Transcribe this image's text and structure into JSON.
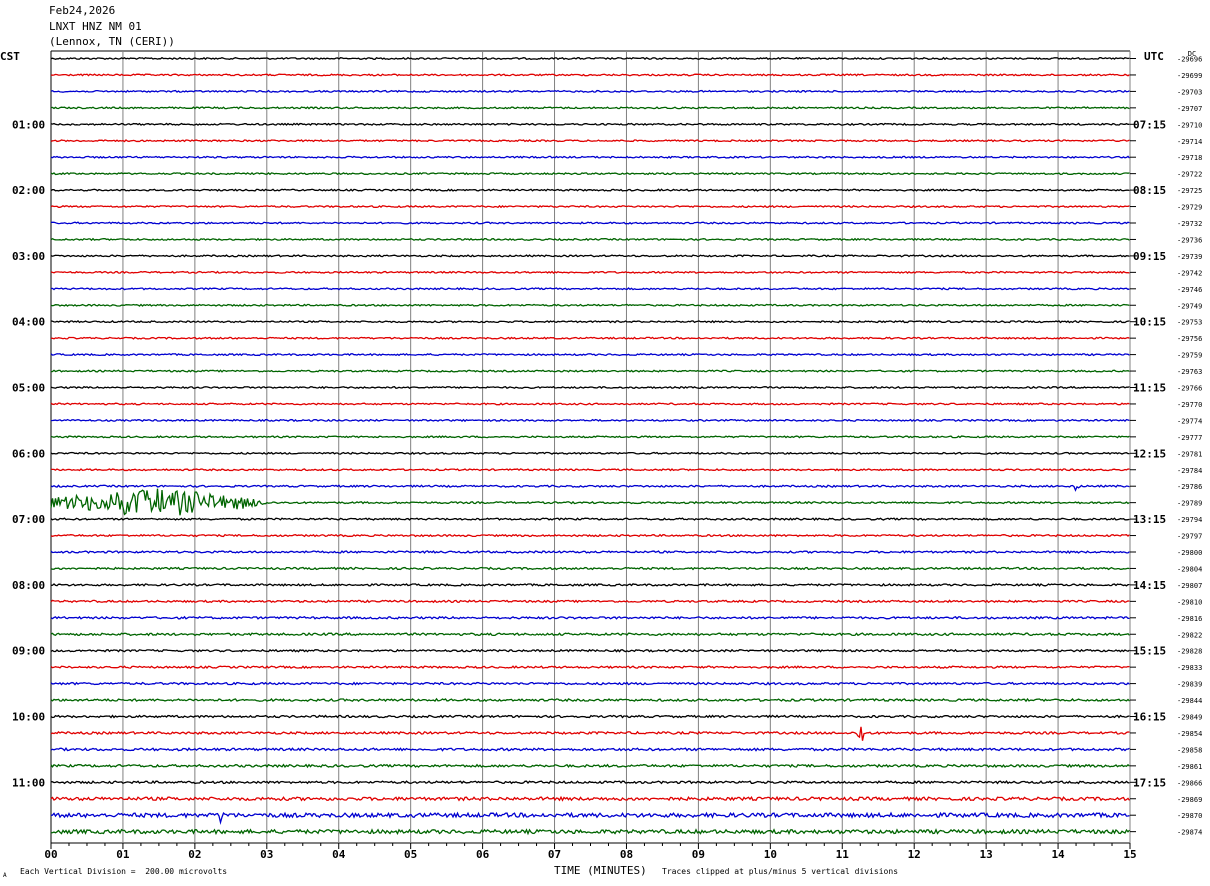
{
  "header": {
    "date": "Feb24,2026",
    "station": "LNXT HNZ NM 01",
    "location": "(Lennox, TN (CERI))"
  },
  "left_tz": "CST",
  "right_tz": "UTC",
  "dc_label": "DC",
  "footer": {
    "scale_note": "Each Vertical Division =  200.00 microvolts",
    "xlabel": "TIME (MINUTES)",
    "clip_note": "Traces clipped at plus/minus 5 vertical divisions",
    "corner_mark": "A"
  },
  "colors": {
    "cycle": [
      "#000000",
      "#e00000",
      "#0000d0",
      "#006400"
    ],
    "grid": "#808080"
  },
  "chart_data": {
    "type": "line",
    "title": "LNXT HNZ NM 01",
    "xlabel": "TIME (MINUTES)",
    "xlim": [
      0,
      15
    ],
    "x_ticks": [
      "00",
      "01",
      "02",
      "03",
      "04",
      "05",
      "06",
      "07",
      "08",
      "09",
      "10",
      "11",
      "12",
      "13",
      "14",
      "15"
    ],
    "minute_subticks": 4,
    "traces_per_hour": 4,
    "trace_count": 48,
    "left_hour_labels": [
      "01:00",
      "02:00",
      "03:00",
      "04:00",
      "05:00",
      "06:00",
      "07:00",
      "08:00",
      "09:00",
      "10:00",
      "11:00"
    ],
    "right_hour_labels": [
      "07:15",
      "08:15",
      "09:15",
      "10:15",
      "11:15",
      "12:15",
      "13:15",
      "14:15",
      "15:15",
      "16:15",
      "17:15"
    ],
    "dc_offsets": [
      -29696,
      -29699,
      -29703,
      -29707,
      -29710,
      -29714,
      -29718,
      -29722,
      -29725,
      -29729,
      -29732,
      -29736,
      -29739,
      -29742,
      -29746,
      -29749,
      -29753,
      -29756,
      -29759,
      -29763,
      -29766,
      -29770,
      -29774,
      -29777,
      -29781,
      -29784,
      -29786,
      -29789,
      -29794,
      -29797,
      -29800,
      -29804,
      -29807,
      -29810,
      -29816,
      -29822,
      -29828,
      -29833,
      -29839,
      -29844,
      -29849,
      -29854,
      -29858,
      -29861,
      -29866,
      -29869,
      -29870,
      -29874
    ],
    "noise_level": [
      1,
      1,
      1,
      1,
      1,
      1,
      1,
      1,
      1,
      1,
      1,
      1,
      1,
      1,
      1,
      1,
      1,
      1,
      1,
      1,
      1,
      1,
      1,
      1,
      1,
      1,
      1.1,
      1.1,
      1.1,
      1.1,
      1.2,
      1.2,
      1.2,
      1.2,
      1.3,
      1.4,
      1.2,
      1.2,
      1.3,
      1.4,
      1.3,
      1.4,
      1.5,
      1.5,
      1.4,
      2,
      2.6,
      2.4
    ],
    "events": [
      {
        "trace": 27,
        "start_min": 0.0,
        "end_min": 3.0,
        "peak_min": 1.4,
        "amplitude": 10
      },
      {
        "trace": 41,
        "start_min": 11.2,
        "end_min": 11.3,
        "peak_min": 11.25,
        "amplitude": 14
      },
      {
        "trace": 46,
        "start_min": 2.35,
        "end_min": 2.4,
        "peak_min": 2.37,
        "amplitude": 9
      },
      {
        "trace": 26,
        "start_min": 14.2,
        "end_min": 14.3,
        "peak_min": 14.25,
        "amplitude": 6
      }
    ],
    "grid": true
  }
}
